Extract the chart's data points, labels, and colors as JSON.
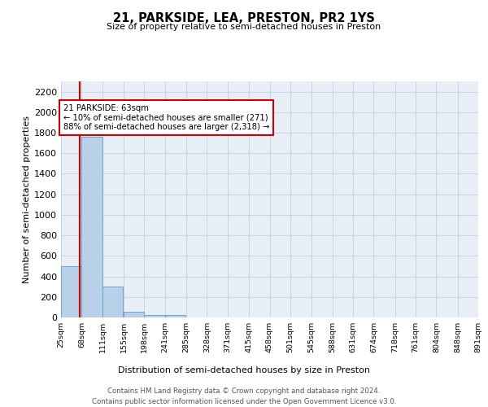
{
  "title": "21, PARKSIDE, LEA, PRESTON, PR2 1YS",
  "subtitle": "Size of property relative to semi-detached houses in Preston",
  "xlabel": "Distribution of semi-detached houses by size in Preston",
  "ylabel": "Number of semi-detached properties",
  "footer_line1": "Contains HM Land Registry data © Crown copyright and database right 2024.",
  "footer_line2": "Contains public sector information licensed under the Open Government Licence v3.0.",
  "property_size": 63,
  "pct_smaller": 10,
  "count_smaller": 271,
  "pct_larger": 88,
  "count_larger": 2318,
  "bar_color": "#b8d0e8",
  "bar_edge_color": "#5a9ec8",
  "vline_color": "#cc0000",
  "annotation_box_color": "#cc0000",
  "grid_color": "#c8d4e4",
  "background_color": "#e8eef6",
  "bin_edges": [
    25,
    68,
    111,
    155,
    198,
    241,
    285,
    328,
    371,
    415,
    458,
    501,
    545,
    588,
    631,
    674,
    718,
    761,
    804,
    848,
    891
  ],
  "bin_labels": [
    "25sqm",
    "68sqm",
    "111sqm",
    "155sqm",
    "198sqm",
    "241sqm",
    "285sqm",
    "328sqm",
    "371sqm",
    "415sqm",
    "458sqm",
    "501sqm",
    "545sqm",
    "588sqm",
    "631sqm",
    "674sqm",
    "718sqm",
    "761sqm",
    "804sqm",
    "848sqm",
    "891sqm"
  ],
  "bar_heights": [
    497,
    1762,
    305,
    55,
    24,
    20,
    0,
    0,
    0,
    0,
    0,
    0,
    0,
    0,
    0,
    0,
    0,
    0,
    0,
    0
  ],
  "ylim": [
    0,
    2300
  ],
  "yticks": [
    0,
    200,
    400,
    600,
    800,
    1000,
    1200,
    1400,
    1600,
    1800,
    2000,
    2200
  ]
}
